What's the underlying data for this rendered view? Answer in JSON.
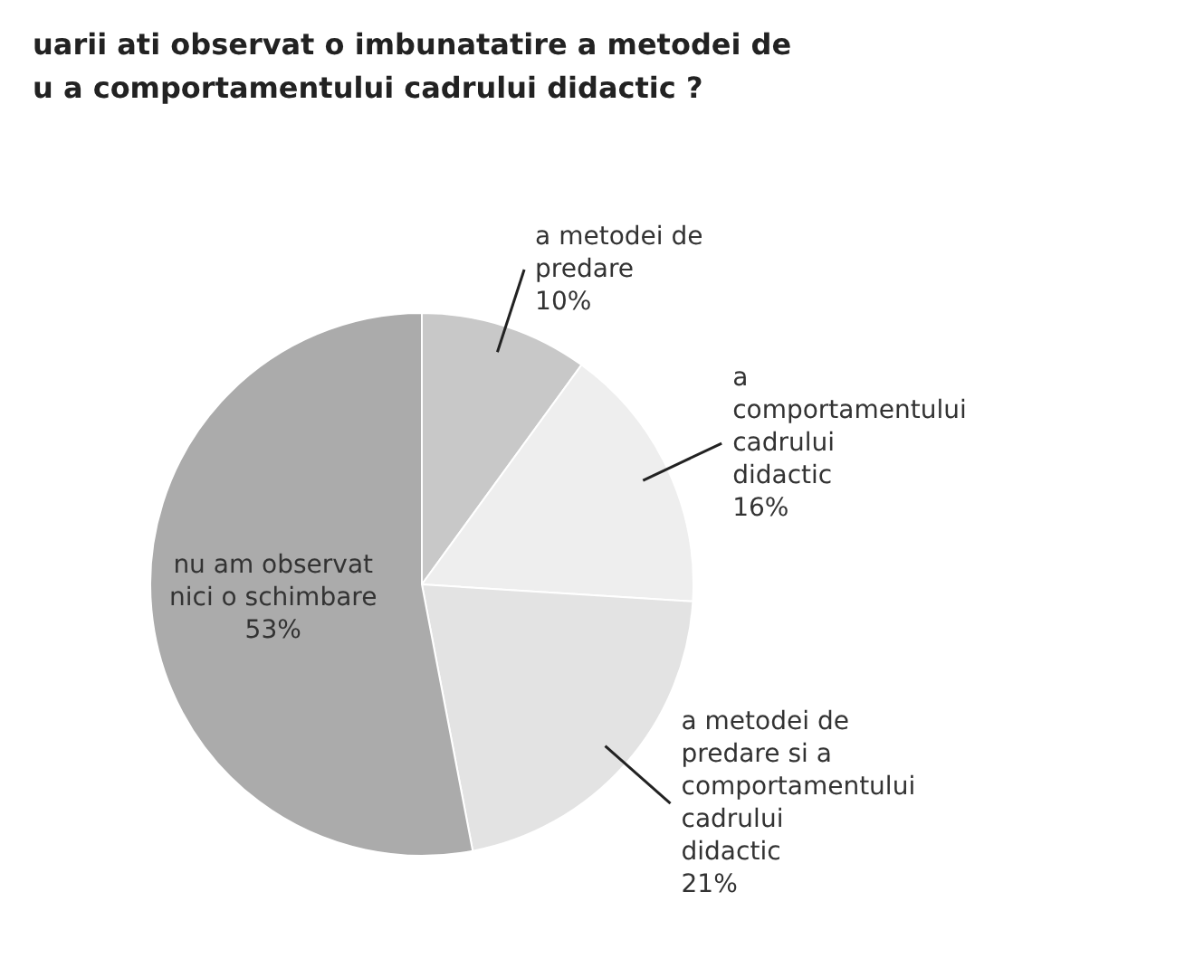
{
  "chart_data": {
    "type": "pie",
    "title": "uarii ati observat o imbunatatire a metodei de\nu a comportamentului cadrului didactic ?",
    "categories": [
      "a metodei de predare",
      "a comportamentului cadrului didactic",
      "a metodei de predare si a comportamentului cadrului didactic",
      "nu am observat nici o schimbare"
    ],
    "values": [
      10,
      16,
      21,
      53
    ],
    "value_labels": [
      "10%",
      "16%",
      "21%",
      "53%"
    ],
    "colors": [
      "#c8c8c8",
      "#eeeeee",
      "#e3e3e3",
      "#ababab"
    ],
    "legend": false
  }
}
